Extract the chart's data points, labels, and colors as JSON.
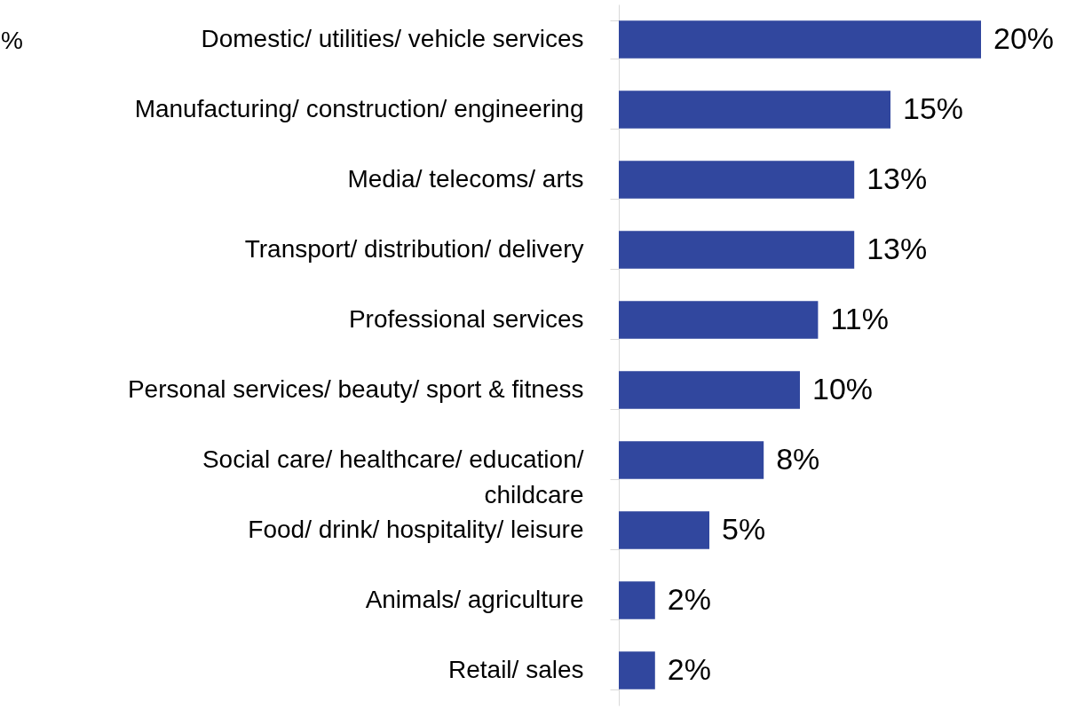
{
  "chart_data": {
    "type": "bar",
    "orientation": "horizontal",
    "categories": [
      "Domestic/ utilities/ vehicle services",
      "Manufacturing/ construction/ engineering",
      "Media/ telecoms/ arts",
      "Transport/ distribution/ delivery",
      "Professional services",
      "Personal services/ beauty/ sport & fitness",
      "Social care/ healthcare/ education/ childcare",
      "Food/ drink/ hospitality/ leisure",
      "Animals/ agriculture",
      "Retail/ sales"
    ],
    "values": [
      20,
      15,
      13,
      13,
      11,
      10,
      8,
      5,
      2,
      2
    ],
    "value_labels": [
      "20%",
      "15%",
      "13%",
      "13%",
      "11%",
      "10%",
      "8%",
      "5%",
      "2%",
      "2%"
    ],
    "color": "#31479e",
    "annotations": [
      "%"
    ]
  }
}
